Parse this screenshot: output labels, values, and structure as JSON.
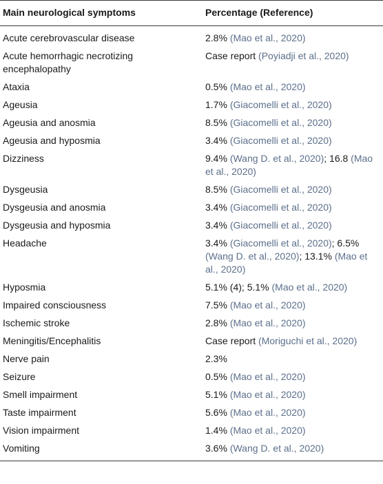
{
  "table": {
    "headers": [
      "Main neurological symptoms",
      "Percentage (Reference)"
    ],
    "rows": [
      {
        "symptom": "Acute cerebrovascular disease",
        "parts": [
          {
            "t": "2.8% "
          },
          {
            "t": "(Mao et al., 2020)",
            "ref": true
          }
        ]
      },
      {
        "symptom": "Acute hemorrhagic necrotizing encephalopathy",
        "parts": [
          {
            "t": "Case report "
          },
          {
            "t": "(Poyiadji et al., 2020)",
            "ref": true
          }
        ]
      },
      {
        "symptom": "Ataxia",
        "parts": [
          {
            "t": "0.5% "
          },
          {
            "t": "(Mao et al., 2020)",
            "ref": true
          }
        ]
      },
      {
        "symptom": "Ageusia",
        "parts": [
          {
            "t": "1.7% "
          },
          {
            "t": "(Giacomelli et al., 2020)",
            "ref": true
          }
        ]
      },
      {
        "symptom": "Ageusia and anosmia",
        "parts": [
          {
            "t": "8.5% "
          },
          {
            "t": "(Giacomelli et al., 2020)",
            "ref": true
          }
        ]
      },
      {
        "symptom": "Ageusia and hyposmia",
        "parts": [
          {
            "t": "3.4% "
          },
          {
            "t": "(Giacomelli et al., 2020)",
            "ref": true
          }
        ]
      },
      {
        "symptom": "Dizziness",
        "parts": [
          {
            "t": "9.4% "
          },
          {
            "t": "(Wang D. et al., 2020)",
            "ref": true
          },
          {
            "t": "; 16.8 "
          },
          {
            "t": "(Mao et al., 2020)",
            "ref": true
          }
        ]
      },
      {
        "symptom": "Dysgeusia",
        "parts": [
          {
            "t": "8.5% "
          },
          {
            "t": "(Giacomelli et al., 2020)",
            "ref": true
          }
        ]
      },
      {
        "symptom": "Dysgeusia and anosmia",
        "parts": [
          {
            "t": "3.4% "
          },
          {
            "t": "(Giacomelli et al., 2020)",
            "ref": true
          }
        ]
      },
      {
        "symptom": "Dysgeusia and hyposmia",
        "parts": [
          {
            "t": "3.4% "
          },
          {
            "t": "(Giacomelli et al., 2020)",
            "ref": true
          }
        ]
      },
      {
        "symptom": "Headache",
        "parts": [
          {
            "t": "3.4% "
          },
          {
            "t": "(Giacomelli et al., 2020)",
            "ref": true
          },
          {
            "t": "; 6.5% "
          },
          {
            "t": "(Wang D. et al., 2020)",
            "ref": true
          },
          {
            "t": "; 13.1% "
          },
          {
            "t": "(Mao et al., 2020)",
            "ref": true
          }
        ]
      },
      {
        "symptom": "Hyposmia",
        "parts": [
          {
            "t": "5.1% (4); 5.1% "
          },
          {
            "t": "(Mao et al., 2020)",
            "ref": true
          }
        ]
      },
      {
        "symptom": "Impaired consciousness",
        "parts": [
          {
            "t": "7.5% "
          },
          {
            "t": "(Mao et al., 2020)",
            "ref": true
          }
        ]
      },
      {
        "symptom": "Ischemic stroke",
        "parts": [
          {
            "t": "2.8% "
          },
          {
            "t": "(Mao et al., 2020)",
            "ref": true
          }
        ]
      },
      {
        "symptom": "Meningitis/Encephalitis",
        "parts": [
          {
            "t": "Case report "
          },
          {
            "t": "(Moriguchi et al., 2020)",
            "ref": true
          }
        ]
      },
      {
        "symptom": "Nerve pain",
        "parts": [
          {
            "t": "2.3%"
          }
        ]
      },
      {
        "symptom": "Seizure",
        "parts": [
          {
            "t": "0.5% "
          },
          {
            "t": "(Mao et al., 2020)",
            "ref": true
          }
        ]
      },
      {
        "symptom": "Smell impairment",
        "parts": [
          {
            "t": "5.1% "
          },
          {
            "t": "(Mao et al., 2020)",
            "ref": true
          }
        ]
      },
      {
        "symptom": "Taste impairment",
        "parts": [
          {
            "t": "5.6% "
          },
          {
            "t": "(Mao et al., 2020)",
            "ref": true
          }
        ]
      },
      {
        "symptom": "Vision impairment",
        "parts": [
          {
            "t": "1.4% "
          },
          {
            "t": "(Mao et al., 2020)",
            "ref": true
          }
        ]
      },
      {
        "symptom": "Vomiting",
        "parts": [
          {
            "t": "3.6% "
          },
          {
            "t": "(Wang D. et al., 2020)",
            "ref": true
          }
        ]
      }
    ]
  },
  "colors": {
    "text": "#1a1a1a",
    "reference_link": "#5c6f8a",
    "rule": "#3a3a3a"
  }
}
